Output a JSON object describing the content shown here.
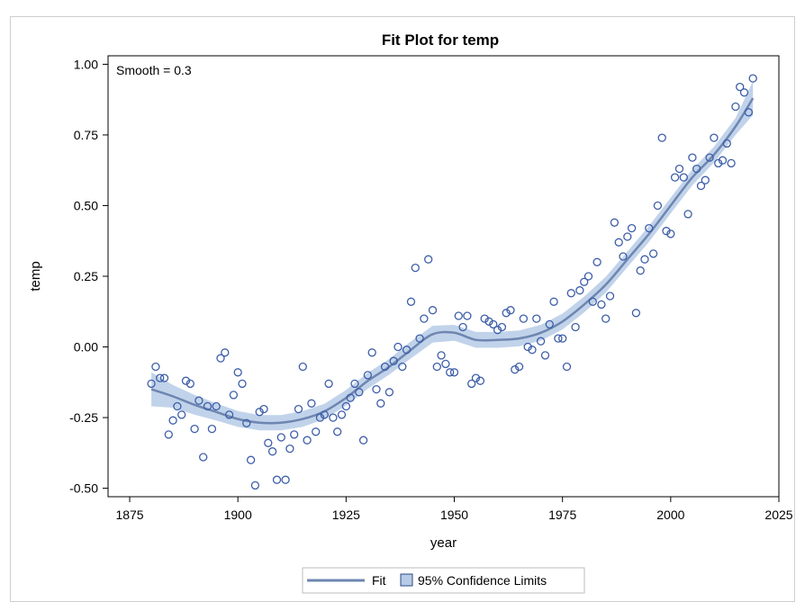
{
  "chart_data": {
    "type": "scatter",
    "title": "Fit Plot for temp",
    "xlabel": "year",
    "ylabel": "temp",
    "xlim": [
      1870,
      2025
    ],
    "ylim": [
      -0.53,
      1.03
    ],
    "x_ticks": [
      "1875",
      "1900",
      "1925",
      "1950",
      "1975",
      "2000",
      "2025"
    ],
    "x_tick_values": [
      1875,
      1900,
      1925,
      1950,
      1975,
      2000,
      2025
    ],
    "y_ticks": [
      "1.00",
      "0.75",
      "0.50",
      "0.25",
      "0.00",
      "-0.25",
      "-0.50"
    ],
    "y_tick_values": [
      1.0,
      0.75,
      0.5,
      0.25,
      0.0,
      -0.25,
      -0.5
    ],
    "annotation": "Smooth = 0.3",
    "grid": false,
    "legend_placement": "bottom-center",
    "colors": {
      "points": "#3d5ea8",
      "fit": "#6e86b0",
      "band": "#b6cbe6"
    },
    "legend": {
      "fit_label": "Fit",
      "band_label": "95% Confidence Limits"
    },
    "series": [
      {
        "name": "temp",
        "kind": "points",
        "x": [
          1880,
          1881,
          1882,
          1883,
          1884,
          1885,
          1886,
          1887,
          1888,
          1889,
          1890,
          1891,
          1892,
          1893,
          1894,
          1895,
          1896,
          1897,
          1898,
          1899,
          1900,
          1901,
          1902,
          1903,
          1904,
          1905,
          1906,
          1907,
          1908,
          1909,
          1910,
          1911,
          1912,
          1913,
          1914,
          1915,
          1916,
          1917,
          1918,
          1919,
          1920,
          1921,
          1922,
          1923,
          1924,
          1925,
          1926,
          1927,
          1928,
          1929,
          1930,
          1931,
          1932,
          1933,
          1934,
          1935,
          1936,
          1937,
          1938,
          1939,
          1940,
          1941,
          1942,
          1943,
          1944,
          1945,
          1946,
          1947,
          1948,
          1949,
          1950,
          1951,
          1952,
          1953,
          1954,
          1955,
          1956,
          1957,
          1958,
          1959,
          1960,
          1961,
          1962,
          1963,
          1964,
          1965,
          1966,
          1967,
          1968,
          1969,
          1970,
          1971,
          1972,
          1973,
          1974,
          1975,
          1976,
          1977,
          1978,
          1979,
          1980,
          1981,
          1982,
          1983,
          1984,
          1985,
          1986,
          1987,
          1988,
          1989,
          1990,
          1991,
          1992,
          1993,
          1994,
          1995,
          1996,
          1997,
          1998,
          1999,
          2000,
          2001,
          2002,
          2003,
          2004,
          2005,
          2006,
          2007,
          2008,
          2009,
          2010,
          2011,
          2012,
          2013,
          2014,
          2015,
          2016,
          2017,
          2018,
          2019
        ],
        "y": [
          -0.13,
          -0.07,
          -0.11,
          -0.11,
          -0.31,
          -0.26,
          -0.21,
          -0.24,
          -0.12,
          -0.13,
          -0.29,
          -0.19,
          -0.39,
          -0.21,
          -0.29,
          -0.21,
          -0.04,
          -0.02,
          -0.24,
          -0.17,
          -0.09,
          -0.13,
          -0.27,
          -0.4,
          -0.49,
          -0.23,
          -0.22,
          -0.34,
          -0.37,
          -0.47,
          -0.32,
          -0.47,
          -0.36,
          -0.31,
          -0.22,
          -0.07,
          -0.33,
          -0.2,
          -0.3,
          -0.25,
          -0.24,
          -0.13,
          -0.25,
          -0.3,
          -0.24,
          -0.21,
          -0.18,
          -0.13,
          -0.16,
          -0.33,
          -0.1,
          -0.02,
          -0.15,
          -0.2,
          -0.07,
          -0.16,
          -0.05,
          0.0,
          -0.07,
          -0.01,
          0.16,
          0.28,
          0.03,
          0.1,
          0.31,
          0.13,
          -0.07,
          -0.03,
          -0.06,
          -0.09,
          -0.09,
          0.11,
          0.07,
          0.11,
          -0.13,
          -0.11,
          -0.12,
          0.1,
          0.09,
          0.08,
          0.06,
          0.07,
          0.12,
          0.13,
          -0.08,
          -0.07,
          0.1,
          0.0,
          -0.01,
          0.1,
          0.02,
          -0.03,
          0.08,
          0.16,
          0.03,
          0.03,
          -0.07,
          0.19,
          0.07,
          0.2,
          0.23,
          0.25,
          0.16,
          0.3,
          0.15,
          0.1,
          0.18,
          0.44,
          0.37,
          0.32,
          0.39,
          0.42,
          0.12,
          0.27,
          0.31,
          0.42,
          0.33,
          0.5,
          0.74,
          0.41,
          0.4,
          0.6,
          0.63,
          0.6,
          0.47,
          0.67,
          0.63,
          0.57,
          0.59,
          0.67,
          0.74,
          0.65,
          0.66,
          0.72,
          0.65,
          0.85,
          0.92,
          0.9,
          0.83,
          0.95
        ]
      },
      {
        "name": "Fit",
        "kind": "line",
        "x": [
          1880,
          1885,
          1890,
          1895,
          1900,
          1905,
          1910,
          1915,
          1920,
          1925,
          1930,
          1935,
          1940,
          1945,
          1950,
          1955,
          1960,
          1965,
          1970,
          1975,
          1980,
          1985,
          1990,
          1995,
          2000,
          2005,
          2010,
          2015,
          2019
        ],
        "y": [
          -0.15,
          -0.175,
          -0.205,
          -0.23,
          -0.255,
          -0.268,
          -0.268,
          -0.255,
          -0.228,
          -0.18,
          -0.12,
          -0.07,
          -0.01,
          0.045,
          0.05,
          0.025,
          0.025,
          0.03,
          0.05,
          0.09,
          0.15,
          0.22,
          0.31,
          0.4,
          0.5,
          0.6,
          0.68,
          0.78,
          0.88
        ]
      },
      {
        "name": "95% Confidence Limits",
        "kind": "band",
        "x": [
          1880,
          1885,
          1890,
          1895,
          1900,
          1905,
          1910,
          1915,
          1920,
          1925,
          1930,
          1935,
          1940,
          1945,
          1950,
          1955,
          1960,
          1965,
          1970,
          1975,
          1980,
          1985,
          1990,
          1995,
          2000,
          2005,
          2010,
          2015,
          2019
        ],
        "lower": [
          -0.21,
          -0.215,
          -0.24,
          -0.26,
          -0.283,
          -0.295,
          -0.295,
          -0.283,
          -0.255,
          -0.208,
          -0.148,
          -0.098,
          -0.04,
          0.015,
          0.022,
          -0.003,
          -0.003,
          0.002,
          0.022,
          0.062,
          0.122,
          0.192,
          0.282,
          0.372,
          0.472,
          0.572,
          0.652,
          0.75,
          0.82
        ],
        "upper": [
          -0.09,
          -0.135,
          -0.17,
          -0.2,
          -0.227,
          -0.241,
          -0.241,
          -0.227,
          -0.201,
          -0.152,
          -0.092,
          -0.042,
          0.02,
          0.075,
          0.078,
          0.053,
          0.053,
          0.058,
          0.078,
          0.118,
          0.178,
          0.248,
          0.338,
          0.428,
          0.528,
          0.628,
          0.708,
          0.81,
          0.94
        ]
      }
    ]
  }
}
